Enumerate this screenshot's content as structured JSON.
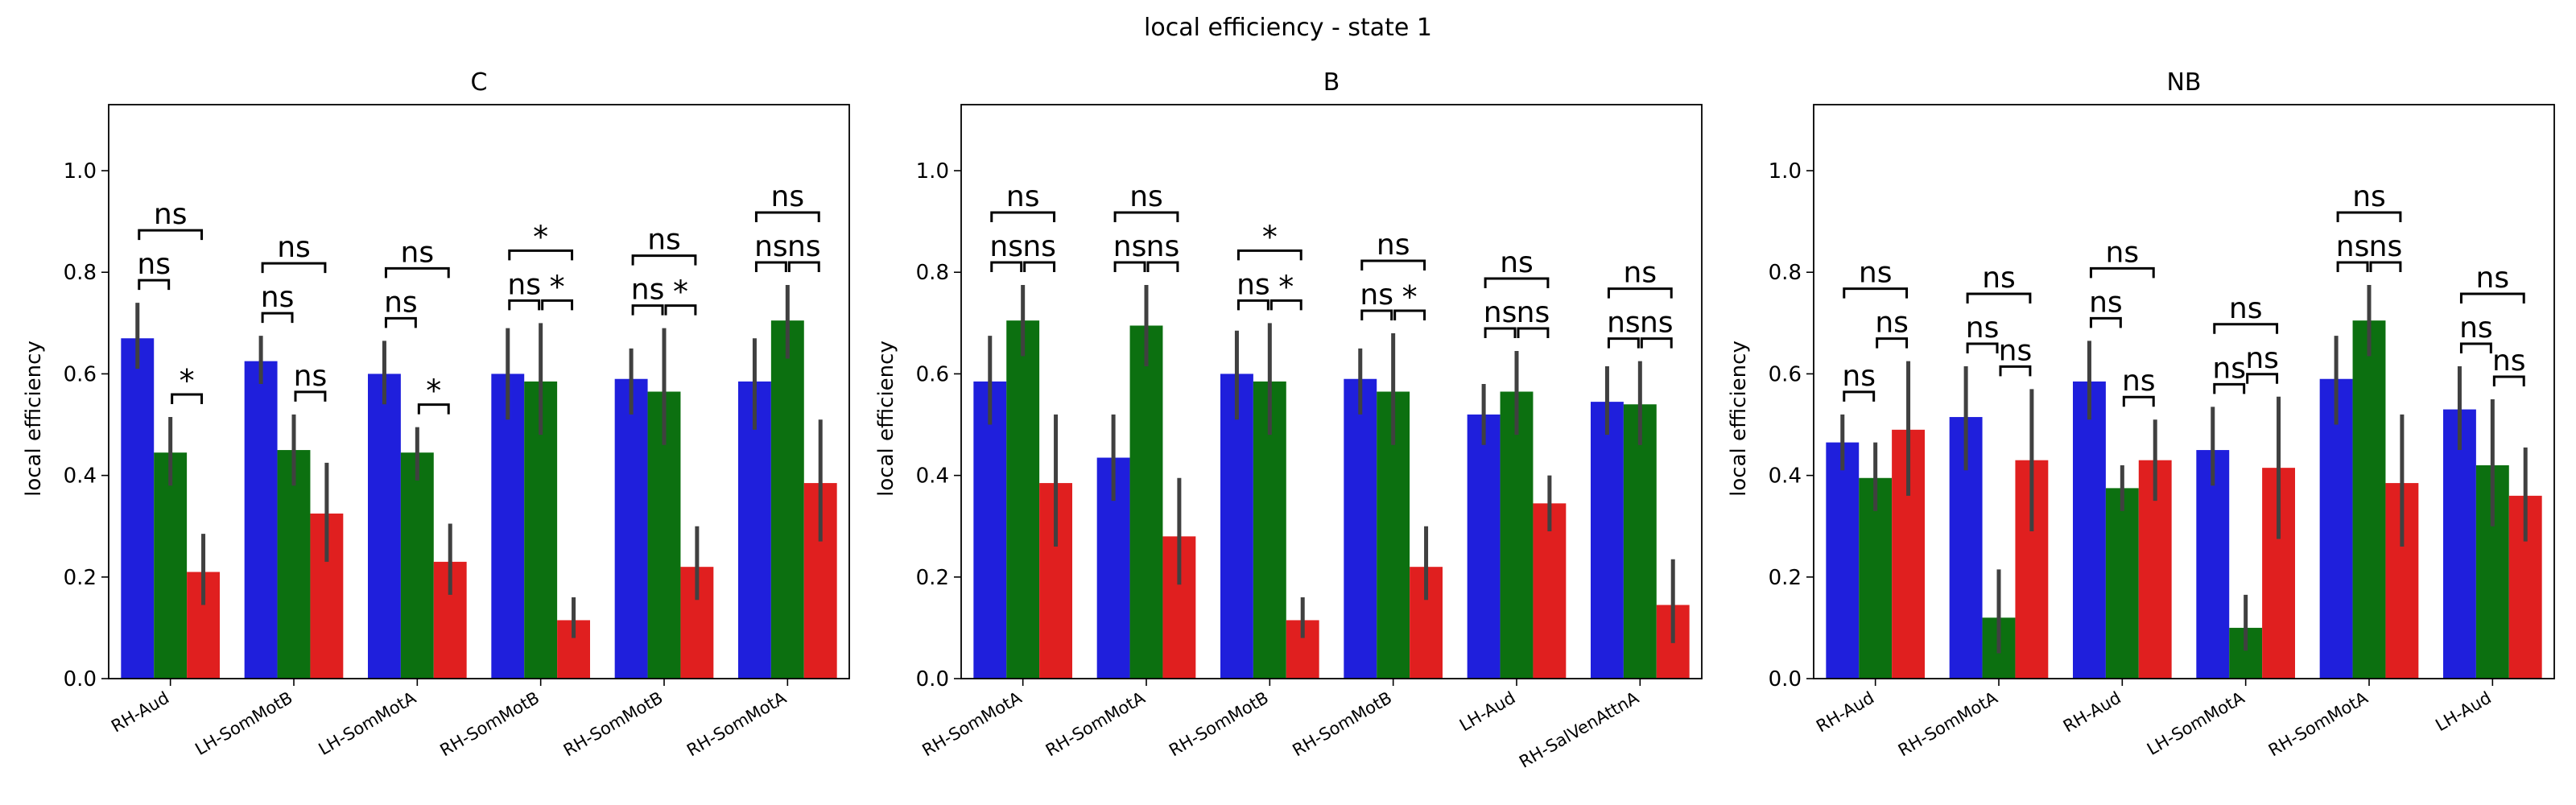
{
  "figure": {
    "suptitle": "local efficiency - state 1"
  },
  "colors": {
    "blue": "#1f1fdc",
    "green": "#0c7010",
    "red": "#e01f1f",
    "errorbar": "#404040",
    "axis": "#000000"
  },
  "chart_data": [
    {
      "type": "bar",
      "title": "C",
      "ylabel": "local efficiency",
      "xlabel": "",
      "ylim": [
        0,
        1.13
      ],
      "yticks": [
        "0.0",
        "0.2",
        "0.4",
        "0.6",
        "0.8",
        "1.0"
      ],
      "categories": [
        "RH-Aud",
        "LH-SomMotB",
        "LH-SomMotA",
        "RH-SomMotB",
        "RH-SomMotB",
        "RH-SomMotA"
      ],
      "series": [
        {
          "color": "blue",
          "values": [
            0.67,
            0.625,
            0.6,
            0.6,
            0.59,
            0.585
          ],
          "ci": [
            [
              0.61,
              0.74
            ],
            [
              0.58,
              0.675
            ],
            [
              0.54,
              0.665
            ],
            [
              0.51,
              0.69
            ],
            [
              0.52,
              0.65
            ],
            [
              0.49,
              0.67
            ]
          ]
        },
        {
          "color": "green",
          "values": [
            0.445,
            0.45,
            0.445,
            0.585,
            0.565,
            0.705
          ],
          "ci": [
            [
              0.38,
              0.515
            ],
            [
              0.38,
              0.52
            ],
            [
              0.39,
              0.495
            ],
            [
              0.48,
              0.7
            ],
            [
              0.46,
              0.69
            ],
            [
              0.63,
              0.775
            ]
          ]
        },
        {
          "color": "red",
          "values": [
            0.21,
            0.325,
            0.23,
            0.115,
            0.22,
            0.385
          ],
          "ci": [
            [
              0.145,
              0.285
            ],
            [
              0.23,
              0.425
            ],
            [
              0.165,
              0.305
            ],
            [
              0.08,
              0.16
            ],
            [
              0.155,
              0.3
            ],
            [
              0.27,
              0.51
            ]
          ]
        }
      ],
      "annotations": [
        [
          "ns",
          "*",
          "ns"
        ],
        [
          "ns",
          "ns",
          "ns"
        ],
        [
          "ns",
          "*",
          "ns"
        ],
        [
          "ns",
          "*",
          "*"
        ],
        [
          "ns",
          "*",
          "ns"
        ],
        [
          "ns",
          "ns",
          "ns"
        ]
      ]
    },
    {
      "type": "bar",
      "title": "B",
      "ylabel": "local efficiency",
      "xlabel": "",
      "ylim": [
        0,
        1.13
      ],
      "yticks": [
        "0.0",
        "0.2",
        "0.4",
        "0.6",
        "0.8",
        "1.0"
      ],
      "categories": [
        "RH-SomMotA",
        "RH-SomMotA",
        "RH-SomMotB",
        "RH-SomMotB",
        "LH-Aud",
        "RH-SalVenAttnA"
      ],
      "series": [
        {
          "color": "blue",
          "values": [
            0.585,
            0.435,
            0.6,
            0.59,
            0.52,
            0.545
          ],
          "ci": [
            [
              0.5,
              0.675
            ],
            [
              0.35,
              0.52
            ],
            [
              0.51,
              0.685
            ],
            [
              0.52,
              0.65
            ],
            [
              0.46,
              0.58
            ],
            [
              0.48,
              0.615
            ]
          ]
        },
        {
          "color": "green",
          "values": [
            0.705,
            0.695,
            0.585,
            0.565,
            0.565,
            0.54
          ],
          "ci": [
            [
              0.635,
              0.775
            ],
            [
              0.615,
              0.775
            ],
            [
              0.48,
              0.7
            ],
            [
              0.46,
              0.68
            ],
            [
              0.48,
              0.645
            ],
            [
              0.46,
              0.625
            ]
          ]
        },
        {
          "color": "red",
          "values": [
            0.385,
            0.28,
            0.115,
            0.22,
            0.345,
            0.145
          ],
          "ci": [
            [
              0.26,
              0.52
            ],
            [
              0.185,
              0.395
            ],
            [
              0.08,
              0.16
            ],
            [
              0.155,
              0.3
            ],
            [
              0.29,
              0.4
            ],
            [
              0.07,
              0.235
            ]
          ]
        }
      ],
      "annotations": [
        [
          "ns",
          "ns",
          "ns"
        ],
        [
          "ns",
          "ns",
          "ns"
        ],
        [
          "ns",
          "*",
          "*"
        ],
        [
          "ns",
          "*",
          "ns"
        ],
        [
          "ns",
          "ns",
          "ns"
        ],
        [
          "ns",
          "ns",
          "ns"
        ]
      ]
    },
    {
      "type": "bar",
      "title": "NB",
      "ylabel": "local efficiency",
      "xlabel": "",
      "ylim": [
        0,
        1.13
      ],
      "yticks": [
        "0.0",
        "0.2",
        "0.4",
        "0.6",
        "0.8",
        "1.0"
      ],
      "categories": [
        "RH-Aud",
        "RH-SomMotA",
        "RH-Aud",
        "LH-SomMotA",
        "RH-SomMotA",
        "LH-Aud"
      ],
      "series": [
        {
          "color": "blue",
          "values": [
            0.465,
            0.515,
            0.585,
            0.45,
            0.59,
            0.53
          ],
          "ci": [
            [
              0.41,
              0.52
            ],
            [
              0.41,
              0.615
            ],
            [
              0.51,
              0.665
            ],
            [
              0.38,
              0.535
            ],
            [
              0.5,
              0.675
            ],
            [
              0.45,
              0.615
            ]
          ]
        },
        {
          "color": "green",
          "values": [
            0.395,
            0.12,
            0.375,
            0.1,
            0.705,
            0.42
          ],
          "ci": [
            [
              0.33,
              0.465
            ],
            [
              0.05,
              0.215
            ],
            [
              0.33,
              0.42
            ],
            [
              0.055,
              0.165
            ],
            [
              0.635,
              0.775
            ],
            [
              0.3,
              0.55
            ]
          ]
        },
        {
          "color": "red",
          "values": [
            0.49,
            0.43,
            0.43,
            0.415,
            0.385,
            0.36
          ],
          "ci": [
            [
              0.36,
              0.625
            ],
            [
              0.29,
              0.57
            ],
            [
              0.35,
              0.51
            ],
            [
              0.275,
              0.555
            ],
            [
              0.26,
              0.52
            ],
            [
              0.27,
              0.455
            ]
          ]
        }
      ],
      "annotations": [
        [
          "ns",
          "ns",
          "ns"
        ],
        [
          "ns",
          "ns",
          "ns"
        ],
        [
          "ns",
          "ns",
          "ns"
        ],
        [
          "ns",
          "ns",
          "ns"
        ],
        [
          "ns",
          "ns",
          "ns"
        ],
        [
          "ns",
          "ns",
          "ns"
        ]
      ]
    }
  ]
}
